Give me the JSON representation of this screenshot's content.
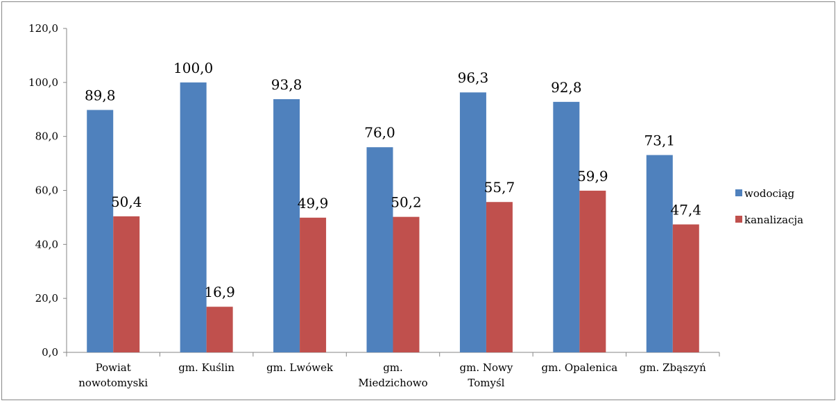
{
  "chart_data": {
    "type": "bar",
    "categories": [
      [
        "Powiat",
        "nowotomyski"
      ],
      [
        "gm. Kuślin"
      ],
      [
        "gm. Lwówek"
      ],
      [
        "gm.",
        "Miedzichowo"
      ],
      [
        "gm. Nowy",
        "Tomyśl"
      ],
      [
        "gm. Opalenica"
      ],
      [
        "gm. Zbąszyń"
      ]
    ],
    "series": [
      {
        "name": "wodociąg",
        "color": "#4F81BD",
        "values": [
          89.8,
          100.0,
          93.8,
          76.0,
          96.3,
          92.8,
          73.1
        ],
        "labels": [
          "89,8",
          "100,0",
          "93,8",
          "76,0",
          "96,3",
          "92,8",
          "73,1"
        ]
      },
      {
        "name": "kanalizacja",
        "color": "#C0504D",
        "values": [
          50.4,
          16.9,
          49.9,
          50.2,
          55.7,
          59.9,
          47.4
        ],
        "labels": [
          "50,4",
          "16,9",
          "49,9",
          "50,2",
          "55,7",
          "59,9",
          "47,4"
        ]
      }
    ],
    "ylim": [
      0,
      120
    ],
    "yticks": [
      0,
      20,
      40,
      60,
      80,
      100,
      120
    ],
    "ytick_labels": [
      "0,0",
      "20,0",
      "40,0",
      "60,0",
      "80,0",
      "100,0",
      "120,0"
    ],
    "legend_position": "right",
    "grid": false
  }
}
